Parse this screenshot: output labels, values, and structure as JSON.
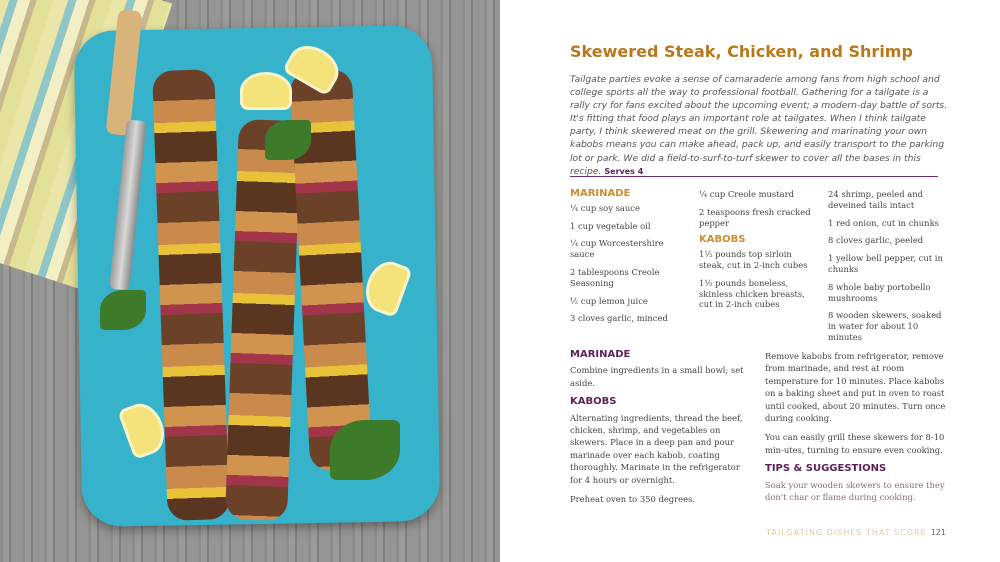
{
  "recipe": {
    "title": "Skewered Steak, Chicken, and Shrimp",
    "intro": "Tailgate parties evoke a sense of camaraderie among fans from high school and college sports all the way to professional football. Gathering for a tailgate is a rally cry for fans excited about the upcoming event; a modern-day battle of sorts. It's fitting that food plays an important role at tailgates. When I think tailgate party, I think skewered meat on the grill. Skewering and marinating your own kabobs means you can make ahead, pack up, and easily transport to the parking lot or park. We did a field-to-surf-to-turf skewer to cover all the bases in this recipe.",
    "serves": "Serves 4"
  },
  "ingredients": {
    "marinade_heading": "Marinade",
    "marinade": [
      "¼ cup soy sauce",
      "1 cup vegetable oil",
      "¼ cup Worcestershire sauce",
      "2 tablespoons Creole Seasoning",
      "½ cup lemon juice",
      "3 cloves garlic, minced"
    ],
    "marinade_cont": [
      "¼ cup Creole mustard",
      "2 teaspoons fresh cracked pepper"
    ],
    "kabobs_heading": "Kabobs",
    "kabobs": [
      "1½ pounds top sirloin steak, cut in 2-inch cubes",
      "1½ pounds boneless, skinless chicken breasts, cut in 2-inch cubes"
    ],
    "kabobs_cont": [
      "24 shrimp, peeled and deveined tails intact",
      "1 red onion, cut in chunks",
      "8 cloves garlic, peeled",
      "1 yellow bell pepper, cut in chunks",
      "8 whole baby portobello mushrooms",
      "8 wooden skewers, soaked in water for about 10 minutes"
    ]
  },
  "directions": {
    "marinade_heading": "Marinade",
    "marinade": "Combine ingredients in a small bowl; set aside.",
    "kabobs_heading": "Kabobs",
    "kabobs": [
      "Alternating ingredients, thread the beef, chicken, shrimp, and vegetables on skewers. Place in a deep pan and pour marinade over each kabob, coating thoroughly. Marinate in the refrigerator for 4 hours or overnight.",
      "Preheat oven to 350 degrees.",
      "Remove kabobs from refrigerator, remove from marinade, and rest at room temperature for 10 minutes. Place kabobs on a baking sheet and put in oven to roast until cooked, about 20 minutes. Turn once during cooking.",
      "You can easily grill these skewers for 8-10 min-utes, turning to ensure even cooking."
    ],
    "tips_heading": "Tips & Suggestions",
    "tips": "Soak your wooden skewers to ensure they don't char or flame during cooking."
  },
  "footer": {
    "section": "TAILGATING DISHES THAT SCORE",
    "page": "121"
  },
  "colors": {
    "title": "#b9781c",
    "heading_orange": "#d28a2b",
    "heading_purple": "#5c1f5a",
    "plate": "#36b3cb"
  }
}
